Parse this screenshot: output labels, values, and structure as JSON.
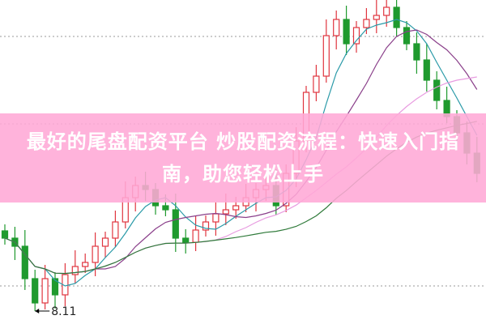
{
  "banner": {
    "title": "最好的尾盘配资平台 炒股配资流程：快速入门指南，助您轻松上手"
  },
  "chart_data": {
    "type": "candlestick",
    "ylim": [
      7.95,
      11.95
    ],
    "grid": "dotted horizontal",
    "up_color": "#e0353f",
    "down_color": "#1f9a2e",
    "first_open": 9.1,
    "close": [
      9.01,
      8.91,
      8.51,
      8.21,
      8.51,
      8.31,
      8.56,
      8.66,
      8.71,
      8.91,
      9.01,
      9.21,
      9.51,
      9.66,
      9.61,
      9.41,
      9.36,
      9.01,
      8.96,
      9.11,
      9.21,
      9.31,
      9.36,
      9.41,
      9.51,
      9.61,
      9.66,
      9.41,
      9.81,
      10.21,
      10.81,
      11.01,
      11.51,
      11.71,
      11.41,
      11.61,
      11.71,
      11.76,
      11.86,
      11.61,
      11.41,
      11.21,
      10.96,
      10.71,
      10.51,
      10.31,
      10.06,
      9.81
    ],
    "moving_averages": [
      {
        "period": 5,
        "color": "#2a9aa8"
      },
      {
        "period": 10,
        "color": "#8a3f8a"
      },
      {
        "period": 20,
        "color": "#e89be0"
      },
      {
        "period": 30,
        "color": "#2f7a3a"
      }
    ],
    "annotation": {
      "label": "8.11",
      "value": 8.11
    }
  }
}
